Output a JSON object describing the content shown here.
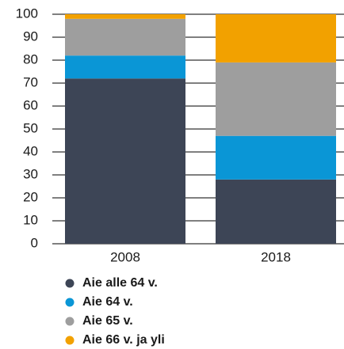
{
  "chart_data": {
    "type": "stacked_bar",
    "categories": [
      "2008",
      "2018"
    ],
    "series": [
      {
        "name": "Aie alle 64 v.",
        "color": "#3d4556",
        "values": [
          72,
          28
        ]
      },
      {
        "name": "Aie 64 v.",
        "color": "#0a96d6",
        "values": [
          10,
          19
        ]
      },
      {
        "name": "Aie 65 v.",
        "color": "#9e9e9e",
        "values": [
          16,
          32
        ]
      },
      {
        "name": "Aie 66 v. ja yli",
        "color": "#f2a100",
        "values": [
          2,
          21
        ]
      }
    ],
    "ylim": [
      0,
      100
    ],
    "yticks": [
      0,
      10,
      20,
      30,
      40,
      50,
      60,
      70,
      80,
      90,
      100
    ],
    "grid": true
  }
}
